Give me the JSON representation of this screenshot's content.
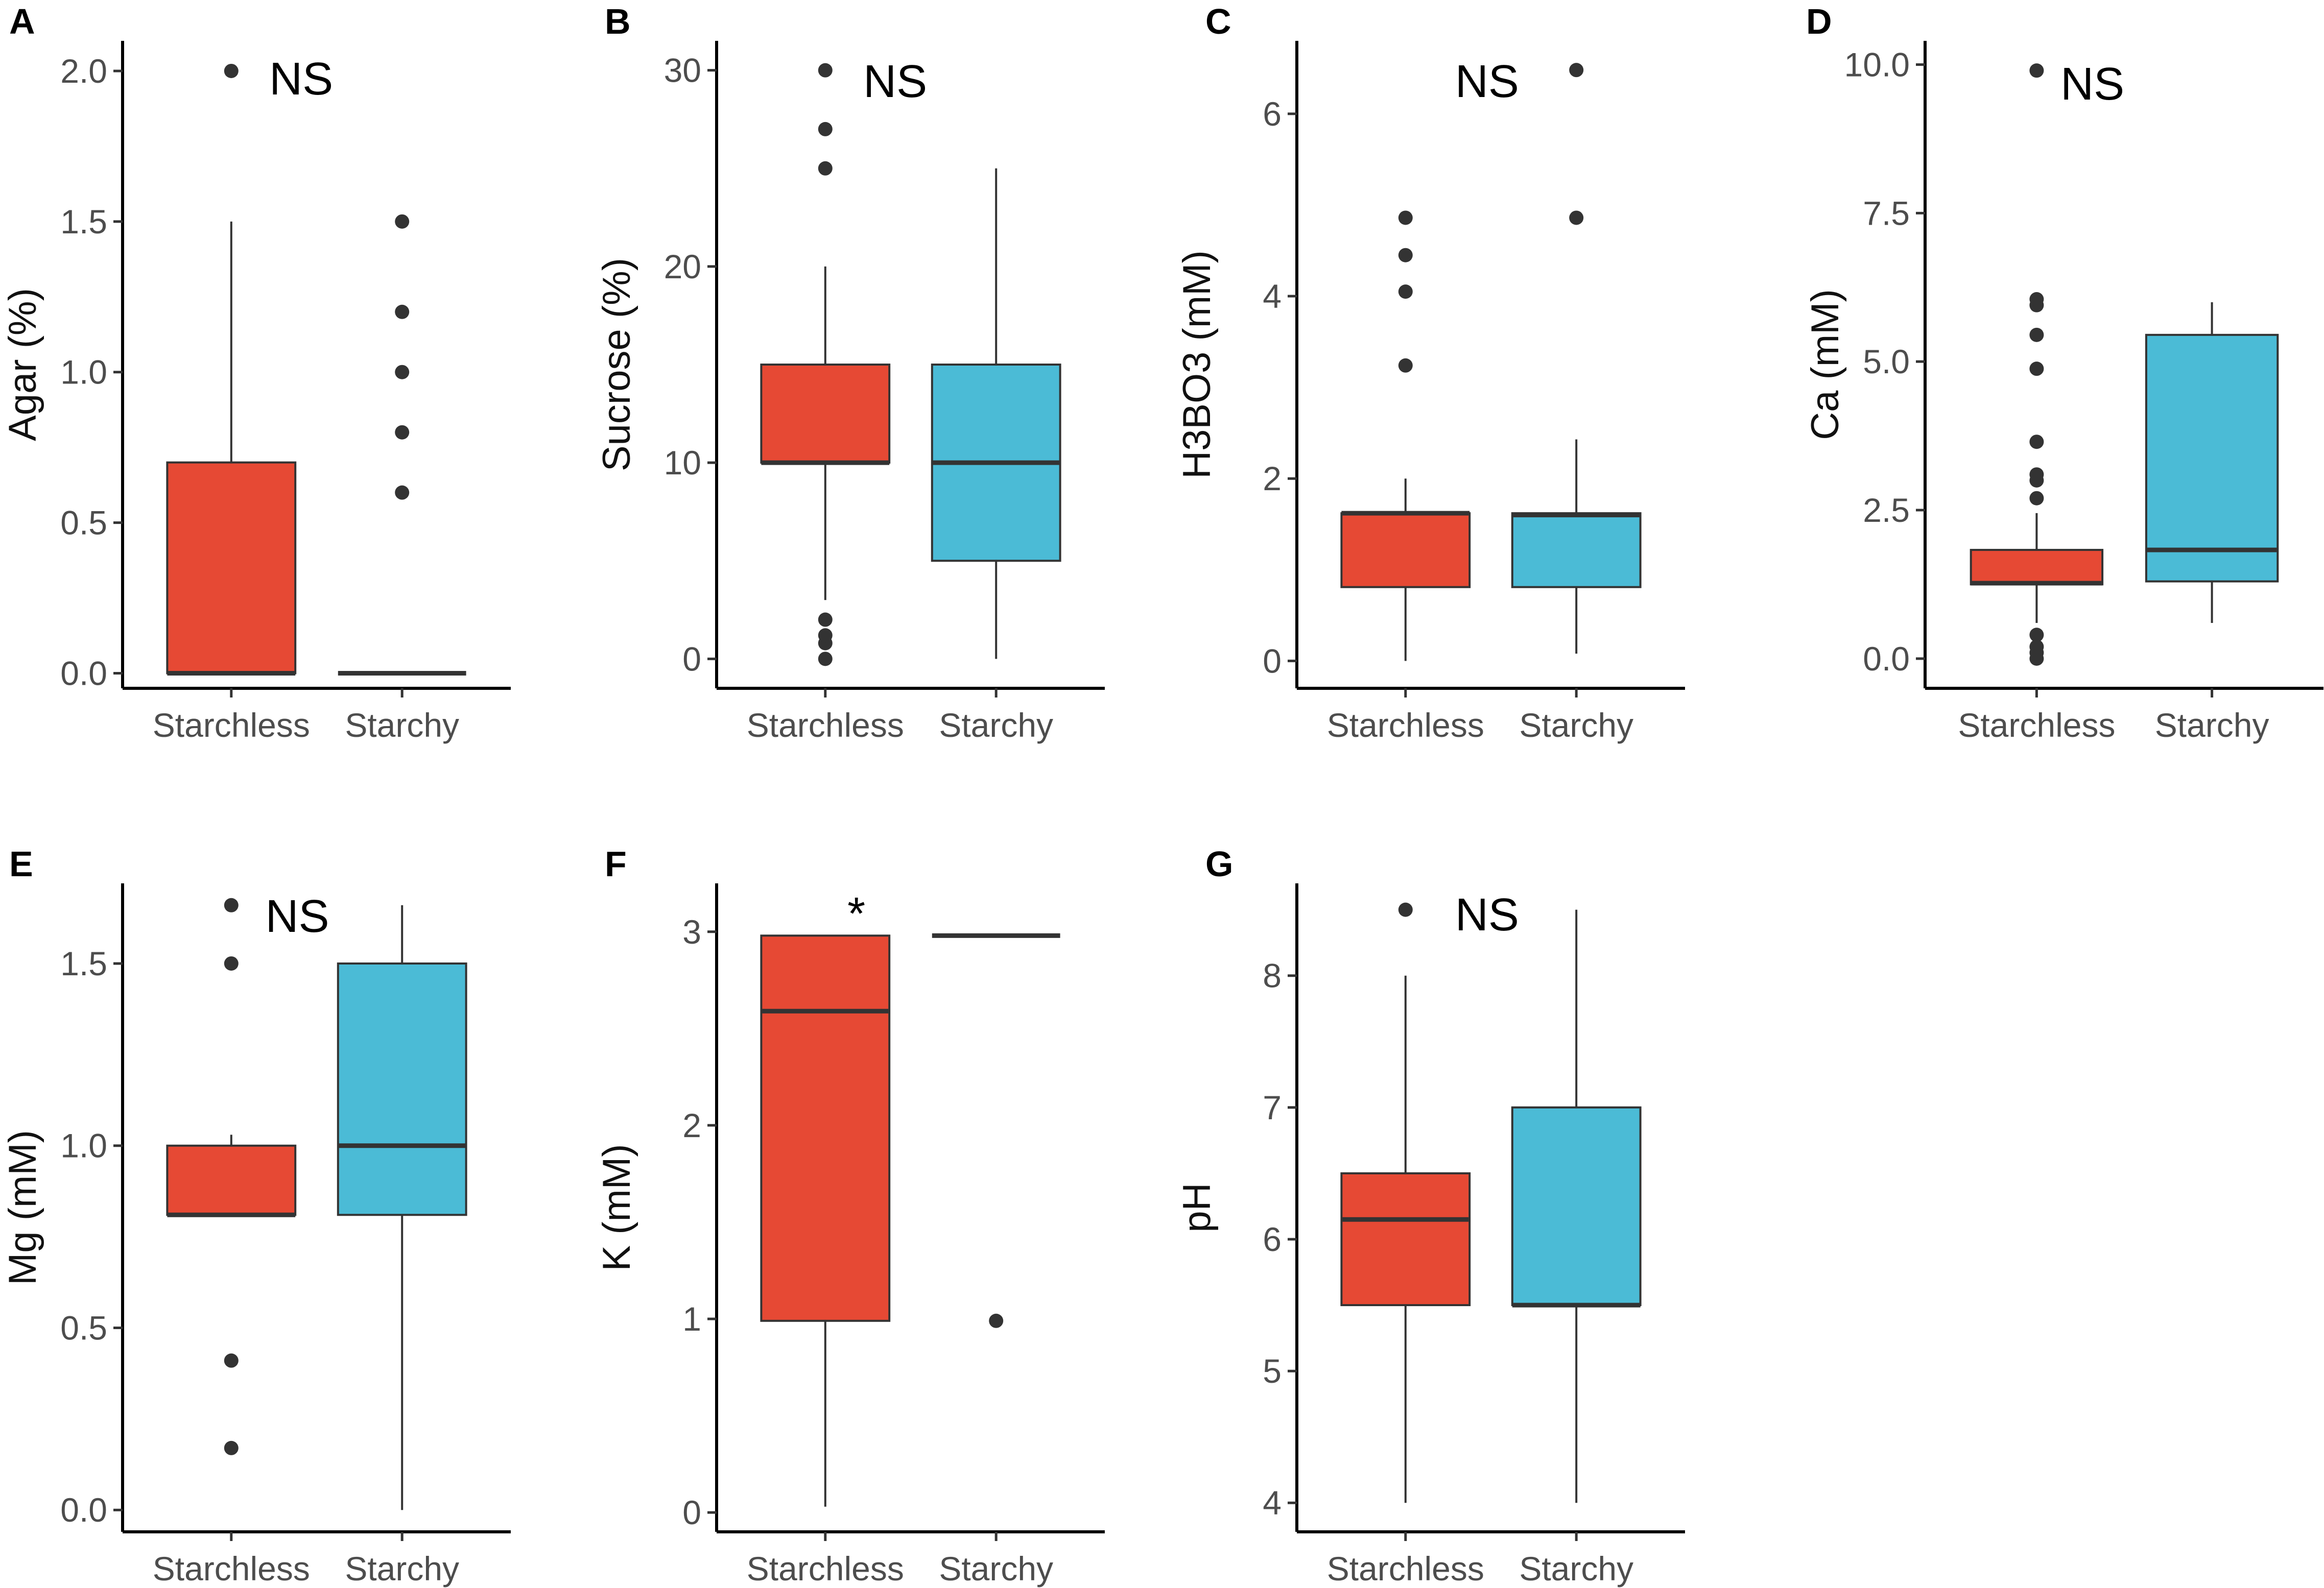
{
  "figure": {
    "colors": {
      "starchless": "#e64934",
      "starchy": "#4bbbd6",
      "line": "#333333"
    }
  },
  "chart_data": [
    {
      "panel": "A",
      "type": "box",
      "ylabel": "Agar (%)",
      "significance": "NS",
      "categories": [
        "Starchless",
        "Starchy"
      ],
      "ylim": [
        -0.05,
        2.1
      ],
      "ticks": [
        0,
        0.5,
        1.0,
        1.5,
        2.0
      ],
      "tick_labels": [
        "0.0",
        "0.5",
        "1.0",
        "1.5",
        "2.0"
      ],
      "boxes": [
        {
          "category": "Starchless",
          "min": 0,
          "q1": 0,
          "median": 0,
          "q3": 0.7,
          "max": 1.5,
          "outliers": [
            2.0
          ]
        },
        {
          "category": "Starchy",
          "min": 0,
          "q1": 0,
          "median": 0,
          "q3": 0,
          "max": 0,
          "outliers": [
            0.6,
            0.8,
            1.0,
            1.2,
            1.5
          ]
        }
      ]
    },
    {
      "panel": "B",
      "type": "box",
      "ylabel": "Sucrose (%)",
      "significance": "NS",
      "categories": [
        "Starchless",
        "Starchy"
      ],
      "ylim": [
        -1.5,
        31.5
      ],
      "ticks": [
        0,
        10,
        20,
        30
      ],
      "tick_labels": [
        "0",
        "10",
        "20",
        "30"
      ],
      "boxes": [
        {
          "category": "Starchless",
          "min": 3,
          "q1": 10,
          "median": 10,
          "q3": 15,
          "max": 20,
          "outliers": [
            0,
            0.8,
            1.2,
            2,
            25,
            27,
            30
          ]
        },
        {
          "category": "Starchy",
          "min": 0,
          "q1": 5,
          "median": 10,
          "q3": 15,
          "max": 25,
          "outliers": []
        }
      ]
    },
    {
      "panel": "C",
      "type": "box",
      "ylabel": "H3BO3 (mM)",
      "significance": "NS",
      "categories": [
        "Starchless",
        "Starchy"
      ],
      "ylim": [
        -0.3,
        6.8
      ],
      "ticks": [
        0,
        2,
        4,
        6
      ],
      "tick_labels": [
        "0",
        "2",
        "4",
        "6"
      ],
      "boxes": [
        {
          "category": "Starchless",
          "min": 0,
          "q1": 0.81,
          "median": 1.62,
          "q3": 1.62,
          "max": 2.0,
          "outliers": [
            3.24,
            4.05,
            4.45,
            4.86
          ]
        },
        {
          "category": "Starchy",
          "min": 0.08,
          "q1": 0.81,
          "median": 1.6,
          "q3": 1.62,
          "max": 2.43,
          "outliers": [
            4.86,
            6.48
          ]
        }
      ]
    },
    {
      "panel": "D",
      "type": "box",
      "ylabel": "Ca (mM)",
      "significance": "NS",
      "categories": [
        "Starchless",
        "Starchy"
      ],
      "ylim": [
        -0.5,
        10.4
      ],
      "ticks": [
        0,
        2.5,
        5.0,
        7.5,
        10.0
      ],
      "tick_labels": [
        "0.0",
        "2.5",
        "5.0",
        "7.5",
        "10.0"
      ],
      "boxes": [
        {
          "category": "Starchless",
          "min": 0.6,
          "q1": 1.25,
          "median": 1.27,
          "q3": 1.83,
          "max": 2.45,
          "outliers": [
            0,
            0.1,
            0.2,
            0.4,
            2.7,
            3.0,
            3.1,
            3.65,
            4.88,
            5.45,
            5.95,
            6.05,
            9.9
          ]
        },
        {
          "category": "Starchy",
          "min": 0.6,
          "q1": 1.3,
          "median": 1.83,
          "q3": 5.45,
          "max": 6.0,
          "outliers": []
        }
      ]
    },
    {
      "panel": "E",
      "type": "box",
      "ylabel": "Mg (mM)",
      "significance": "NS",
      "categories": [
        "Starchless",
        "Starchy"
      ],
      "ylim": [
        -0.06,
        1.72
      ],
      "ticks": [
        0,
        0.5,
        1.0,
        1.5
      ],
      "tick_labels": [
        "0.0",
        "0.5",
        "1.0",
        "1.5"
      ],
      "boxes": [
        {
          "category": "Starchless",
          "min": 0.81,
          "q1": 0.81,
          "median": 0.81,
          "q3": 1.0,
          "max": 1.03,
          "outliers": [
            0.17,
            0.41,
            1.5,
            1.66
          ]
        },
        {
          "category": "Starchy",
          "min": 0,
          "q1": 0.81,
          "median": 1.0,
          "q3": 1.5,
          "max": 1.66,
          "outliers": []
        }
      ]
    },
    {
      "panel": "F",
      "type": "box",
      "ylabel": "K (mM)",
      "significance": "*",
      "categories": [
        "Starchless",
        "Starchy"
      ],
      "ylim": [
        -0.1,
        3.25
      ],
      "ticks": [
        0,
        1,
        2,
        3
      ],
      "tick_labels": [
        "0",
        "1",
        "2",
        "3"
      ],
      "boxes": [
        {
          "category": "Starchless",
          "min": 0.03,
          "q1": 0.99,
          "median": 2.59,
          "q3": 2.98,
          "max": 2.98,
          "outliers": []
        },
        {
          "category": "Starchy",
          "min": 2.98,
          "q1": 2.98,
          "median": 2.98,
          "q3": 2.98,
          "max": 2.98,
          "outliers": [
            0.99
          ]
        }
      ]
    },
    {
      "panel": "G",
      "type": "box",
      "ylabel": "pH",
      "significance": "NS",
      "categories": [
        "Starchless",
        "Starchy"
      ],
      "ylim": [
        3.78,
        8.7
      ],
      "ticks": [
        4,
        5,
        6,
        7,
        8
      ],
      "tick_labels": [
        "4",
        "5",
        "6",
        "7",
        "8"
      ],
      "boxes": [
        {
          "category": "Starchless",
          "min": 4.0,
          "q1": 5.5,
          "median": 6.15,
          "q3": 6.5,
          "max": 8.0,
          "outliers": [
            8.5
          ]
        },
        {
          "category": "Starchy",
          "min": 4.0,
          "q1": 5.5,
          "median": 5.5,
          "q3": 7.0,
          "max": 8.5,
          "outliers": []
        }
      ]
    }
  ]
}
